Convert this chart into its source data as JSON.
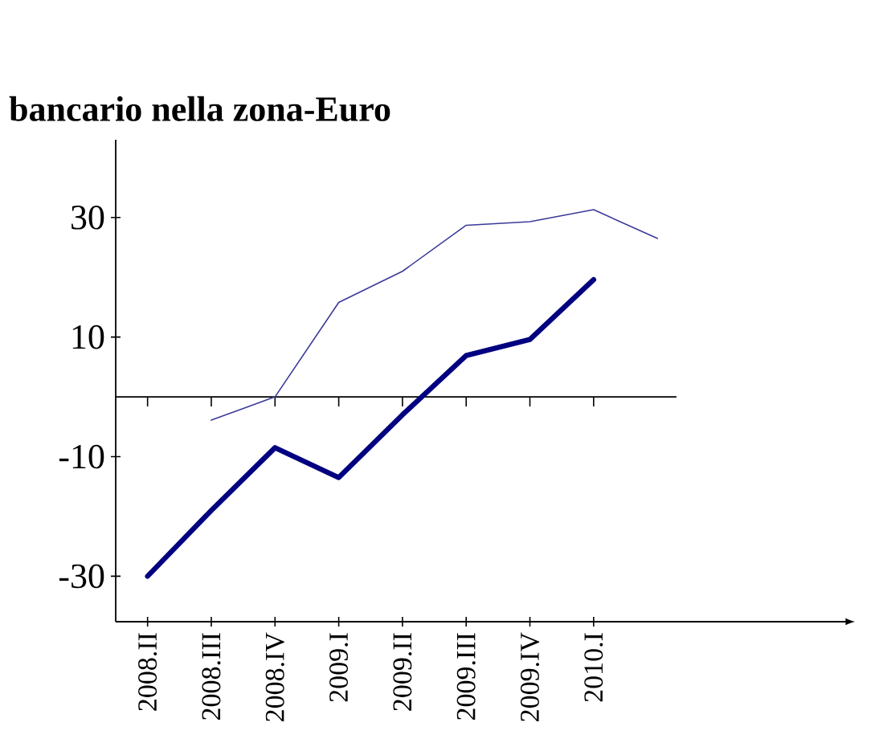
{
  "chart_data": {
    "type": "line",
    "title": "bancario nella zona-Euro",
    "categories": [
      "2008.II",
      "2008.III",
      "2008.IV",
      "2009.I",
      "2009.II",
      "2009.III",
      "2009.IV",
      "2010.I",
      null
    ],
    "series": [
      {
        "color": "#000080",
        "values": [
          -30,
          -19,
          -8.5,
          -13.5,
          -3,
          6.9,
          9.6,
          19.6,
          null
        ]
      },
      {
        "color": "#3a3a9a",
        "values": [
          null,
          -3.9,
          0,
          15.8,
          21,
          28.7,
          29.3,
          31.3,
          26.5
        ]
      }
    ],
    "ylim": [
      -37.6,
      43
    ],
    "yticks": [
      -30,
      -10,
      10,
      30
    ],
    "ref_lines": [
      {
        "axis": "y",
        "value": 0
      }
    ],
    "grid": false,
    "legend": false,
    "marker": "none",
    "line_style": "solid"
  }
}
